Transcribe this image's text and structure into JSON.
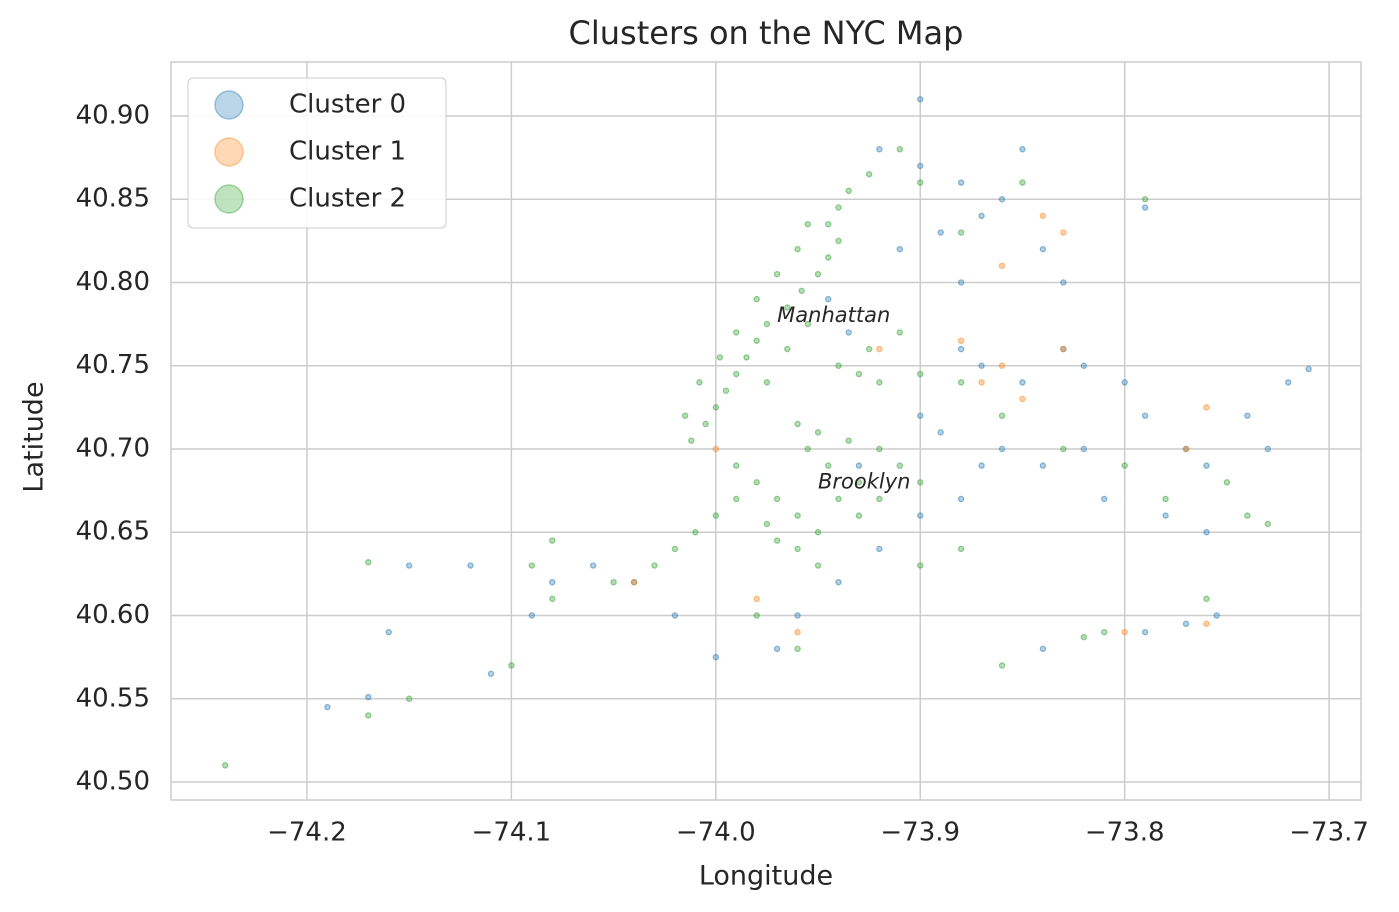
{
  "chart_data": {
    "type": "scatter",
    "title": "Clusters on the NYC Map",
    "x_label": "Longitude",
    "y_label": "Latitude",
    "xlim": [
      -74.2665,
      -73.6844
    ],
    "ylim": [
      40.4892,
      40.9324
    ],
    "xticks": [
      {
        "value": -74.2,
        "label": "−74.2"
      },
      {
        "value": -74.1,
        "label": "−74.1"
      },
      {
        "value": -74.0,
        "label": "−74.0"
      },
      {
        "value": -73.9,
        "label": "−73.9"
      },
      {
        "value": -73.8,
        "label": "−73.8"
      },
      {
        "value": -73.7,
        "label": "−73.7"
      }
    ],
    "yticks": [
      {
        "value": 40.5,
        "label": "40.50"
      },
      {
        "value": 40.55,
        "label": "40.55"
      },
      {
        "value": 40.6,
        "label": "40.60"
      },
      {
        "value": 40.65,
        "label": "40.65"
      },
      {
        "value": 40.7,
        "label": "40.70"
      },
      {
        "value": 40.75,
        "label": "40.75"
      },
      {
        "value": 40.8,
        "label": "40.80"
      },
      {
        "value": 40.85,
        "label": "40.85"
      },
      {
        "value": 40.9,
        "label": "40.90"
      }
    ],
    "grid": true,
    "legend": "upper-left",
    "annotations": [
      {
        "text": "Manhattan",
        "x": -73.97,
        "y": 40.78
      },
      {
        "text": "Brooklyn",
        "x": -73.95,
        "y": 40.68
      }
    ],
    "series": [
      {
        "name": "Cluster 0",
        "color": "#1f77b4",
        "x": [
          -73.9,
          -73.88,
          -73.87,
          -73.89,
          -73.86,
          -73.84,
          -73.83,
          -73.85,
          -73.92,
          -73.9,
          -73.88,
          -73.87,
          -73.85,
          -73.83,
          -73.82,
          -73.8,
          -73.79,
          -73.77,
          -73.76,
          -73.74,
          -73.73,
          -73.72,
          -73.71,
          -73.82,
          -73.84,
          -73.86,
          -73.89,
          -73.9,
          -73.87,
          -73.88,
          -73.9,
          -73.92,
          -73.94,
          -73.96,
          -73.97,
          -74.0,
          -74.02,
          -74.04,
          -74.06,
          -74.08,
          -74.09,
          -74.12,
          -74.15,
          -74.17,
          -74.19,
          -74.16,
          -74.11,
          -73.79,
          -73.77,
          -73.755,
          -73.78,
          -73.76,
          -73.81,
          -73.945,
          -73.935,
          -73.93,
          -73.91,
          -73.88,
          -73.84,
          -73.79
        ],
        "values": [
          40.87,
          40.86,
          40.84,
          40.83,
          40.85,
          40.82,
          40.8,
          40.88,
          40.88,
          40.91,
          40.76,
          40.75,
          40.74,
          40.76,
          40.75,
          40.74,
          40.72,
          40.7,
          40.69,
          40.72,
          40.7,
          40.74,
          40.748,
          40.7,
          40.69,
          40.7,
          40.71,
          40.72,
          40.69,
          40.67,
          40.66,
          40.64,
          40.62,
          40.6,
          40.58,
          40.575,
          40.6,
          40.62,
          40.63,
          40.62,
          40.6,
          40.63,
          40.63,
          40.551,
          40.545,
          40.59,
          40.565,
          40.59,
          40.595,
          40.6,
          40.66,
          40.65,
          40.67,
          40.79,
          40.77,
          40.69,
          40.82,
          40.8,
          40.58,
          40.845
        ]
      },
      {
        "name": "Cluster 1",
        "color": "#ff7f0e",
        "x": [
          -73.86,
          -73.87,
          -73.88,
          -73.85,
          -73.83,
          -73.77,
          -73.76,
          -73.86,
          -73.84,
          -73.83,
          -74.0,
          -73.96,
          -74.04,
          -73.98,
          -73.8,
          -73.76,
          -73.92
        ],
        "values": [
          40.75,
          40.74,
          40.765,
          40.73,
          40.76,
          40.7,
          40.725,
          40.81,
          40.84,
          40.83,
          40.7,
          40.59,
          40.62,
          40.61,
          40.59,
          40.595,
          40.76
        ]
      },
      {
        "name": "Cluster 2",
        "color": "#2ca02c",
        "x": [
          -74.012,
          -74.005,
          -74.0,
          -73.995,
          -73.99,
          -73.985,
          -73.98,
          -73.975,
          -73.965,
          -73.958,
          -73.95,
          -73.945,
          -73.94,
          -73.945,
          -73.94,
          -73.935,
          -73.925,
          -73.998,
          -73.99,
          -73.98,
          -73.97,
          -73.96,
          -73.955,
          -74.008,
          -74.015,
          -73.975,
          -73.965,
          -73.955,
          -73.94,
          -73.925,
          -73.91,
          -73.93,
          -73.92,
          -73.9,
          -73.99,
          -73.98,
          -73.97,
          -73.96,
          -73.95,
          -73.945,
          -73.955,
          -73.96,
          -73.95,
          -73.935,
          -73.92,
          -73.91,
          -73.93,
          -73.94,
          -73.99,
          -74.0,
          -74.01,
          -74.02,
          -74.03,
          -73.975,
          -73.96,
          -73.95,
          -73.93,
          -73.92,
          -73.9,
          -73.97,
          -73.88,
          -73.86,
          -73.83,
          -73.8,
          -73.78,
          -73.75,
          -73.74,
          -73.81,
          -73.82,
          -73.79,
          -73.85,
          -73.88,
          -73.9,
          -73.91,
          -74.08,
          -74.09,
          -74.08,
          -74.1,
          -74.15,
          -74.17,
          -74.24,
          -74.17,
          -73.86,
          -73.96,
          -73.98,
          -74.05,
          -73.88,
          -73.9,
          -73.76,
          -73.73
        ],
        "values": [
          40.705,
          40.715,
          40.725,
          40.735,
          40.745,
          40.755,
          40.765,
          40.775,
          40.785,
          40.795,
          40.805,
          40.815,
          40.825,
          40.835,
          40.845,
          40.855,
          40.865,
          40.755,
          40.77,
          40.79,
          40.805,
          40.82,
          40.835,
          40.74,
          40.72,
          40.74,
          40.76,
          40.775,
          40.75,
          40.76,
          40.77,
          40.745,
          40.74,
          40.745,
          40.69,
          40.68,
          40.67,
          40.66,
          40.65,
          40.69,
          40.7,
          40.715,
          40.71,
          40.705,
          40.7,
          40.69,
          40.68,
          40.67,
          40.67,
          40.66,
          40.65,
          40.64,
          40.63,
          40.655,
          40.64,
          40.63,
          40.66,
          40.67,
          40.68,
          40.645,
          40.74,
          40.72,
          40.7,
          40.69,
          40.67,
          40.68,
          40.66,
          40.59,
          40.587,
          40.85,
          40.86,
          40.83,
          40.86,
          40.88,
          40.645,
          40.63,
          40.61,
          40.57,
          40.55,
          40.54,
          40.51,
          40.632,
          40.57,
          40.58,
          40.6,
          40.62,
          40.64,
          40.63,
          40.61,
          40.655
        ]
      }
    ]
  }
}
